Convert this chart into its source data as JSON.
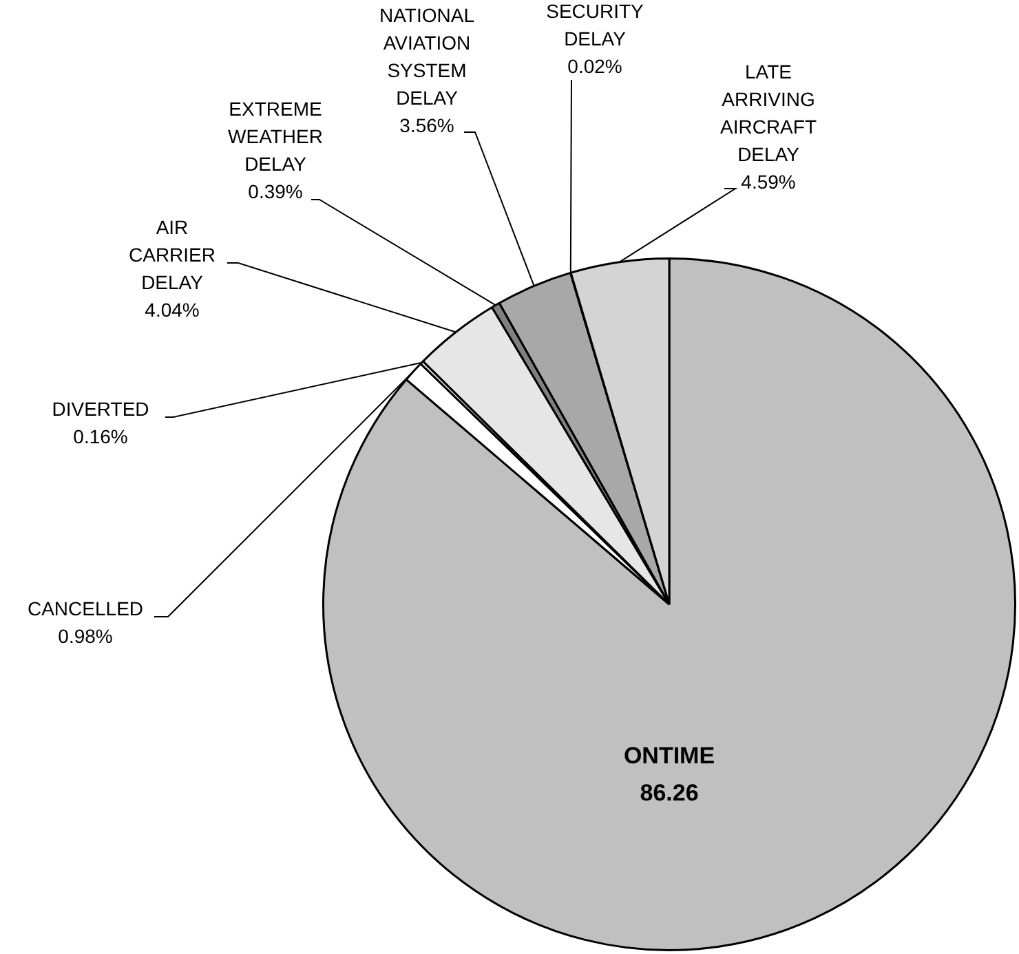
{
  "chart_data": {
    "type": "pie",
    "categories": [
      "ONTIME",
      "CANCELLED",
      "DIVERTED",
      "AIR CARRIER DELAY",
      "EXTREME WEATHER DELAY",
      "NATIONAL AVIATION SYSTEM DELAY",
      "SECURITY DELAY",
      "LATE ARRIVING AIRCRAFT DELAY"
    ],
    "values": [
      86.26,
      0.98,
      0.16,
      4.04,
      0.39,
      3.56,
      0.02,
      4.59
    ],
    "colors": [
      "#c0c0c0",
      "#ffffff",
      "#f4f4f4",
      "#e6e6e6",
      "#808080",
      "#a8a8a8",
      "#000000",
      "#d4d4d4"
    ],
    "value_labels": [
      "86.26",
      "0.98%",
      "0.16%",
      "4.04%",
      "0.39%",
      "3.56%",
      "0.02%",
      "4.59%"
    ],
    "legend": false
  }
}
